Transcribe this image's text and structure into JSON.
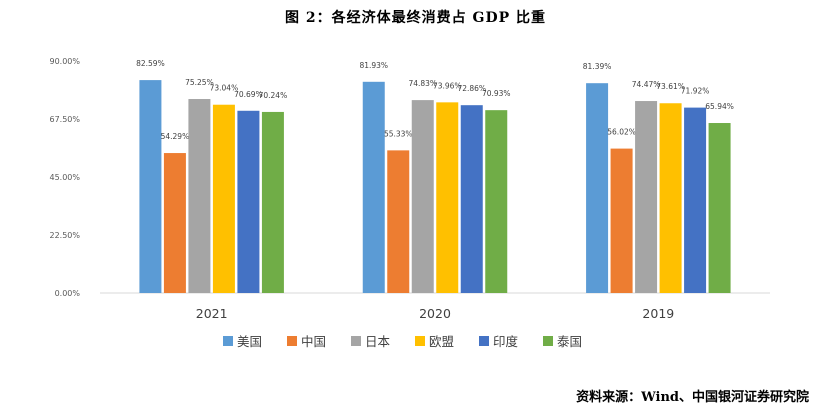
{
  "title": "图 2：各经济体最终消费占 GDP 比重",
  "source": "资料来源：Wind、中国银河证券研究院",
  "chart_data": {
    "type": "bar",
    "title": "图 2：各经济体最终消费占 GDP 比重",
    "xlabel": "",
    "ylabel": "",
    "categories": [
      "2021",
      "2020",
      "2019"
    ],
    "ylim": [
      0,
      90
    ],
    "yticks": [
      "0.00%",
      "22.50%",
      "45.00%",
      "67.50%",
      "90.00%"
    ],
    "grid": false,
    "legend_position": "bottom",
    "series": [
      {
        "name": "美国",
        "color": "#5B9BD5",
        "values": [
          82.59,
          81.93,
          81.39
        ],
        "labels": [
          "82.59%",
          "81.93%",
          "81.39%"
        ]
      },
      {
        "name": "中国",
        "color": "#ED7D31",
        "values": [
          54.29,
          55.33,
          56.02
        ],
        "labels": [
          "54.29%",
          "55.33%",
          "56.02%"
        ]
      },
      {
        "name": "日本",
        "color": "#A5A5A5",
        "values": [
          75.25,
          74.83,
          74.47
        ],
        "labels": [
          "75.25%",
          "74.83%",
          "74.47%"
        ]
      },
      {
        "name": "欧盟",
        "color": "#FFC000",
        "values": [
          73.04,
          73.96,
          73.61
        ],
        "labels": [
          "73.04%",
          "73.96%",
          "73.61%"
        ]
      },
      {
        "name": "印度",
        "color": "#4472C4",
        "values": [
          70.69,
          72.86,
          71.92
        ],
        "labels": [
          "70.69%",
          "72.86%",
          "71.92%"
        ]
      },
      {
        "name": "泰国",
        "color": "#70AD47",
        "values": [
          70.24,
          70.93,
          65.94
        ],
        "labels": [
          "70.24%",
          "70.93%",
          "65.94%"
        ]
      }
    ]
  }
}
